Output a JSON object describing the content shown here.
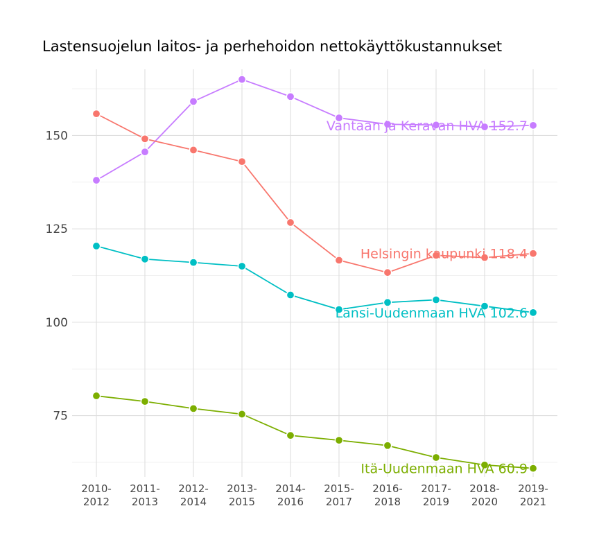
{
  "chart_data": {
    "type": "line",
    "title": "Lastensuojelun laitos- ja perhehoidon nettokäyttökustannukset",
    "xlabel": "",
    "ylabel": "",
    "categories": [
      "2010-\n2012",
      "2011-\n2013",
      "2012-\n2014",
      "2013-\n2015",
      "2014-\n2016",
      "2015-\n2017",
      "2016-\n2018",
      "2017-\n2019",
      "2018-\n2020",
      "2019-\n2021"
    ],
    "ylim": [
      58.6,
      167.7
    ],
    "yticks": [
      75,
      100,
      125,
      150
    ],
    "ytick_labels": [
      "75",
      "100",
      "125",
      "150"
    ],
    "grid": true,
    "legend": "none",
    "series": [
      {
        "name": "Vantaan ja Keravan HVA",
        "end_label": "Vantaan ja Keravan HVA 152.7",
        "color": "#C77CFF",
        "values": [
          138.0,
          145.6,
          159.1,
          165.0,
          160.4,
          154.7,
          153.0,
          152.8,
          152.3,
          152.7
        ]
      },
      {
        "name": "Helsingin kaupunki",
        "end_label": "Helsingin kaupunki 118.4",
        "color": "#F8766D",
        "values": [
          155.8,
          149.1,
          146.1,
          143.0,
          126.7,
          116.6,
          113.3,
          117.9,
          117.3,
          118.4
        ]
      },
      {
        "name": "Länsi-Uudenmaan HVA",
        "end_label": "Länsi-Uudenmaan HVA 102.6",
        "color": "#00BFC4",
        "values": [
          120.4,
          116.9,
          116.0,
          115.0,
          107.3,
          103.4,
          105.3,
          106.0,
          104.3,
          102.6
        ]
      },
      {
        "name": "Itä-Uudenmaan HVA",
        "end_label": "Itä-Uudenmaan HVA 60.9",
        "color": "#7CAE00",
        "values": [
          80.3,
          78.8,
          76.9,
          75.4,
          69.7,
          68.4,
          67.0,
          63.8,
          61.8,
          60.9
        ]
      }
    ]
  }
}
